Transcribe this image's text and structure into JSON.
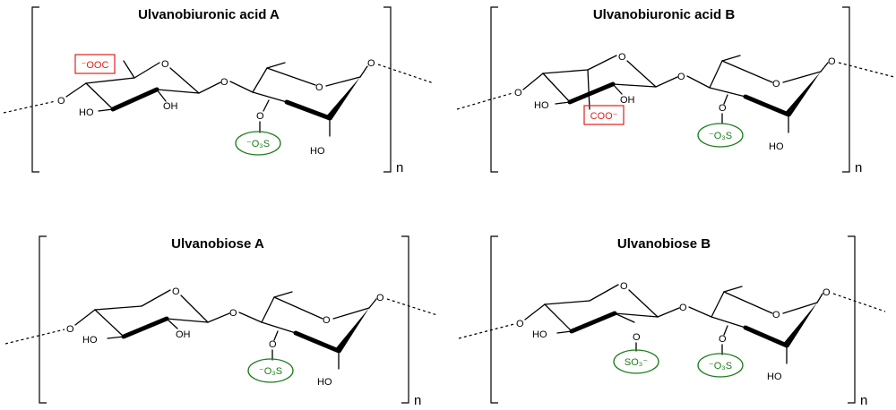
{
  "structures": [
    {
      "title": "Ulvanobiuronic acid A",
      "repeat": "n",
      "labels": {
        "ring1_o": "O",
        "link_o": "O",
        "ring2_o": "O",
        "end_o": "O",
        "left_o": "O",
        "ho_1": "HO",
        "oh_1": "OH",
        "ho_2": "HO",
        "sulfate_o": "O",
        "carboxylate": "⁻OOC",
        "sulfate": "⁻O₃S"
      }
    },
    {
      "title": "Ulvanobiuronic acid B",
      "repeat": "n",
      "labels": {
        "ring1_o": "O",
        "link_o": "O",
        "ring2_o": "O",
        "end_o": "O",
        "left_o": "O",
        "ho_1": "HO",
        "oh_1": "OH",
        "ho_2": "HO",
        "sulfate_o": "O",
        "carboxylate": "COO⁻",
        "sulfate": "⁻O₃S"
      }
    },
    {
      "title": "Ulvanobiose A",
      "repeat": "n",
      "labels": {
        "ring1_o": "O",
        "link_o": "O",
        "ring2_o": "O",
        "end_o": "O",
        "left_o": "O",
        "ho_1": "HO",
        "oh_1": "OH",
        "ho_2": "HO",
        "sulfate_o": "O",
        "sulfate": "⁻O₃S"
      }
    },
    {
      "title": "Ulvanobiose B",
      "repeat": "n",
      "labels": {
        "ring1_o": "O",
        "link_o": "O",
        "ring2_o": "O",
        "end_o": "O",
        "left_o": "O",
        "ho_1": "HO",
        "ho_2": "HO",
        "sulfate_o": "O",
        "sulfate_o_2": "O",
        "sulfate": "⁻O₃S",
        "sulfate_2": "SO₃⁻"
      }
    }
  ],
  "colors": {
    "carboxylate_box": "#e0201b",
    "sulfate_ring": "#1a7d1a"
  }
}
